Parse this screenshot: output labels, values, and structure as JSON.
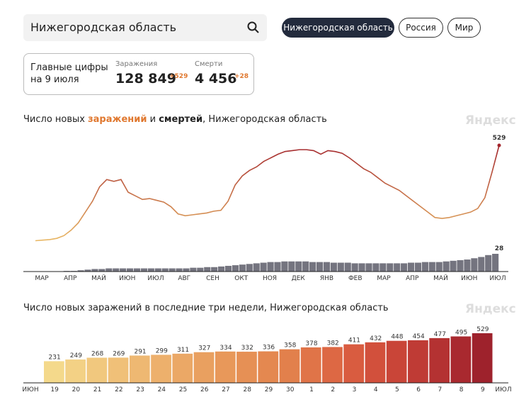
{
  "search": {
    "query": "Нижегородская область"
  },
  "tabs": [
    "Нижегородская область",
    "Россия",
    "Мир"
  ],
  "summary": {
    "title_line1": "Главные цифры",
    "title_line2": "на 9 июля",
    "cases_label": "Заражения",
    "cases_total": "128 849",
    "cases_delta": "+529",
    "deaths_label": "Смерти",
    "deaths_total": "4 456",
    "deaths_delta": "+28"
  },
  "chart_data": [
    {
      "type": "line",
      "title_parts": [
        "Число новых ",
        "заражений",
        " и ",
        "смертей",
        ", Нижегородская область"
      ],
      "watermark": "Яндекс",
      "categories": [
        "МАР",
        "АПР",
        "МАЙ",
        "ИЮН",
        "ИЮЛ",
        "АВГ",
        "СЕН",
        "ОКТ",
        "НОЯ",
        "ДЕК",
        "ЯНВ",
        "ФЕВ",
        "МАР",
        "АПР",
        "МАЙ",
        "ИЮН",
        "ИЮЛ"
      ],
      "cases": {
        "colors": [
          "#a3262c",
          "#e9b864"
        ],
        "values": [
          2,
          5,
          8,
          15,
          30,
          60,
          100,
          160,
          220,
          300,
          340,
          330,
          340,
          270,
          250,
          230,
          235,
          225,
          215,
          190,
          150,
          140,
          145,
          150,
          155,
          165,
          170,
          220,
          310,
          360,
          390,
          410,
          440,
          460,
          480,
          495,
          500,
          505,
          505,
          500,
          480,
          500,
          495,
          485,
          460,
          430,
          400,
          380,
          350,
          320,
          300,
          280,
          250,
          220,
          190,
          160,
          130,
          125,
          130,
          140,
          150,
          160,
          180,
          240,
          380,
          529
        ]
      },
      "deaths": {
        "color": "#74747f",
        "values": [
          0,
          0,
          0,
          0,
          1,
          1,
          2,
          3,
          4,
          4,
          5,
          5,
          5,
          5,
          5,
          5,
          5,
          5,
          5,
          5,
          5,
          5,
          6,
          6,
          7,
          7,
          8,
          9,
          10,
          11,
          12,
          13,
          14,
          15,
          15,
          16,
          16,
          16,
          16,
          15,
          15,
          15,
          14,
          14,
          14,
          13,
          13,
          13,
          13,
          13,
          13,
          13,
          13,
          14,
          14,
          15,
          15,
          15,
          16,
          17,
          18,
          19,
          21,
          23,
          26,
          28
        ]
      }
    },
    {
      "type": "bar",
      "title": "Число новых заражений в последние три недели, Нижегородская область",
      "watermark": "Яндекс",
      "start_label": "ИЮН",
      "end_label": "ИЮЛ",
      "categories": [
        "19",
        "20",
        "21",
        "22",
        "23",
        "24",
        "25",
        "26",
        "27",
        "28",
        "29",
        "30",
        "1",
        "2",
        "3",
        "4",
        "5",
        "6",
        "7",
        "8",
        "9"
      ],
      "highlighted": [
        true,
        true,
        false,
        false,
        false,
        false,
        false,
        true,
        true,
        false,
        false,
        false,
        false,
        false,
        true,
        true,
        false,
        false,
        false,
        false,
        false
      ],
      "highlight_color": "#d9452e",
      "values": [
        231,
        249,
        268,
        269,
        291,
        299,
        311,
        327,
        334,
        332,
        336,
        358,
        378,
        382,
        411,
        432,
        448,
        454,
        477,
        495,
        529
      ],
      "colors": [
        "#f4d98b",
        "#f3d185",
        "#f1c87e",
        "#f0c078",
        "#eeb872",
        "#edb06c",
        "#eba866",
        "#e9a060",
        "#e8985a",
        "#e69055",
        "#e48850",
        "#e2804c",
        "#e07448",
        "#dd6844",
        "#d95c40",
        "#d2503c",
        "#c94538",
        "#bf3b35",
        "#b43232",
        "#a9292f",
        "#9e222c"
      ]
    }
  ]
}
